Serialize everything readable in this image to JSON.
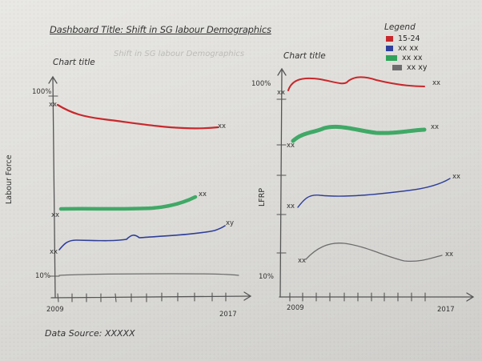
{
  "header": {
    "dashboard_title": "Dashboard Title: Shift in SG labour Demographics"
  },
  "legend": {
    "title": "Legend",
    "items": [
      {
        "label": "15-24",
        "color": "#c8282c"
      },
      {
        "label": "xx xx",
        "color": "#2f3f9b"
      },
      {
        "label": "xx xx",
        "color": "#2fa35a"
      },
      {
        "label": "xx xy",
        "color": "#6d6d6d"
      }
    ]
  },
  "left_chart": {
    "title": "Chart title",
    "ghost_text": "Shift in SG labour Demographics",
    "y_axis_label": "Labour Force",
    "y_top_label": "100%",
    "y_bottom_label": "10%",
    "x_start_label": "2009",
    "x_end_label": "2017",
    "lines": [
      {
        "name": "red",
        "start_label": "xx",
        "end_label": "xx"
      },
      {
        "name": "green",
        "start_label": "xx",
        "end_label": "xx"
      },
      {
        "name": "blue",
        "start_label": "xx",
        "end_label": "xy"
      },
      {
        "name": "gray",
        "start_label": "",
        "end_label": ""
      }
    ]
  },
  "right_chart": {
    "title": "Chart title",
    "y_axis_label": "LFRP",
    "y_top_label": "100%",
    "y_bottom_label": "10%",
    "x_start_label": "2009",
    "x_end_label": "2017",
    "lines": [
      {
        "name": "red",
        "start_label": "xx",
        "end_label": "xx"
      },
      {
        "name": "green",
        "start_label": "xx",
        "end_label": "xx"
      },
      {
        "name": "blue",
        "start_label": "xx",
        "end_label": "xx"
      },
      {
        "name": "gray",
        "start_label": "xx",
        "end_label": "xx"
      }
    ]
  },
  "footer": {
    "data_source": "Data Source: XXXXX"
  }
}
